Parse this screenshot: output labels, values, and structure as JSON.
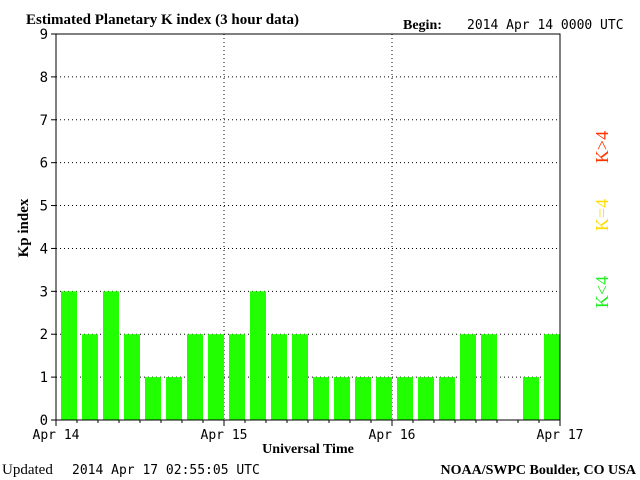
{
  "header": {
    "title": "Estimated Planetary K index (3 hour data)",
    "begin_label": "Begin:",
    "begin_value": "2014 Apr 14 0000 UTC"
  },
  "footer": {
    "updated_label": "Updated",
    "updated_value": "2014 Apr 17 02:55:05 UTC",
    "source": "NOAA/SWPC Boulder, CO USA"
  },
  "legend": {
    "high": {
      "label": "K>4",
      "color": "#ff3300"
    },
    "mid": {
      "label": "K=4",
      "color": "#ffdd00"
    },
    "low": {
      "label": "K<4",
      "color": "#22ee22"
    }
  },
  "chart_data": {
    "type": "bar",
    "title": "Estimated Planetary K index (3 hour data)",
    "xlabel": "Universal Time",
    "ylabel": "Kp index",
    "ylim": [
      0,
      9
    ],
    "yticks": [
      0,
      1,
      2,
      3,
      4,
      5,
      6,
      7,
      8,
      9
    ],
    "xticks": [
      "Apr 14",
      "Apr 15",
      "Apr 16",
      "Apr 17"
    ],
    "interval_hours": 3,
    "values": [
      3,
      2,
      3,
      2,
      1,
      1,
      2,
      2,
      2,
      3,
      2,
      2,
      1,
      1,
      1,
      1,
      1,
      1,
      1,
      2,
      2,
      null,
      1,
      2
    ],
    "bar_color": "#22ff00",
    "grid": "dotted"
  }
}
